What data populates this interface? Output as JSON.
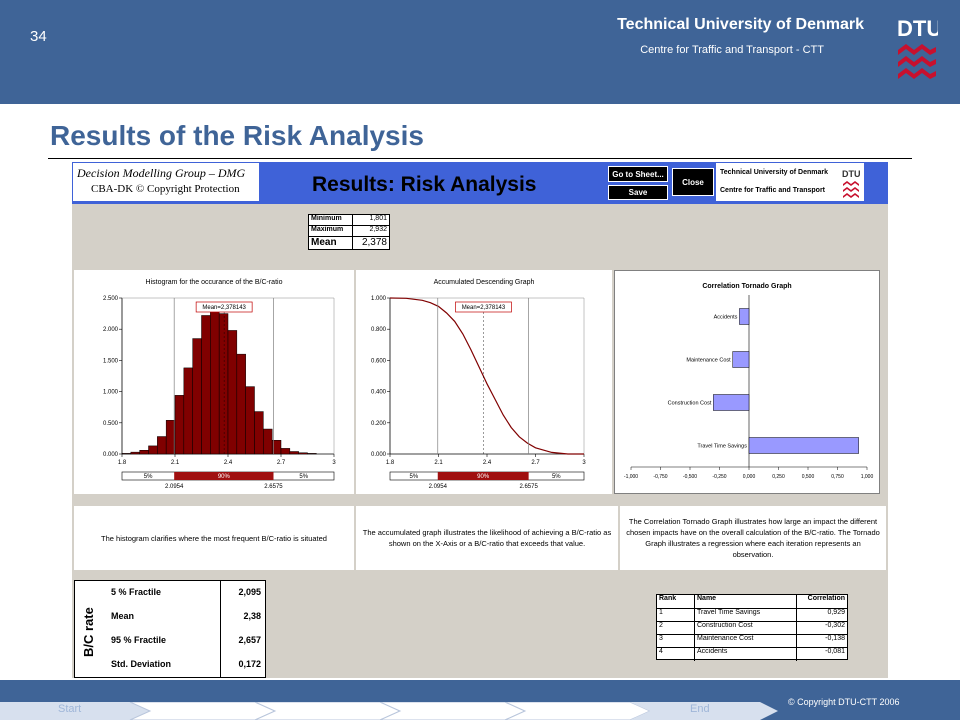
{
  "header": {
    "slide_number": "34",
    "university": "Technical University of Denmark",
    "centre": "Centre for Traffic and Transport - CTT",
    "logo_text": "DTU"
  },
  "slide_title": "Results of the Risk Analysis",
  "app": {
    "dmg_title": "Decision Modelling Group – DMG",
    "dmg_copyright": "CBA-DK © Copyright Protection",
    "title": "Results: Risk Analysis",
    "buttons": {
      "goto": "Go to Sheet...",
      "save": "Save",
      "close": "Close"
    },
    "dtu_line1": "Technical University of Denmark",
    "dtu_line2": "Centre for Traffic and Transport",
    "stats": {
      "min_label": "Minimum",
      "min_value": "1,801",
      "max_label": "Maximum",
      "max_value": "2,932",
      "mean_label": "Mean",
      "mean_value": "2,378"
    },
    "descriptions": {
      "histogram": "The histogram clarifies where the most frequent B/C-ratio is situated",
      "accumulated": "The accumulated graph illustrates the likelihood of achieving a B/C-ratio as shown on the X-Axis or a B/C-ratio that exceeds that value.",
      "tornado": "The Correlation Tornado Graph illustrates how large an impact the different chosen impacts have on the overall calculation of the B/C-ratio. The Tornado Graph illustrates a regression where each iteration represents an observation."
    },
    "fractile_table": {
      "side_label": "B/C rate",
      "rows": [
        {
          "label": "5 % Fractile",
          "value": "2,095"
        },
        {
          "label": "Mean",
          "value": "2,38"
        },
        {
          "label": "95 % Fractile",
          "value": "2,657"
        },
        {
          "label": "Std. Deviation",
          "value": "0,172"
        }
      ]
    },
    "rank_table": {
      "headers": [
        "Rank",
        "Name",
        "Correlation"
      ],
      "rows": [
        [
          "1",
          "Travel Time Savings",
          "0,929"
        ],
        [
          "2",
          "Construction Cost",
          "-0,302"
        ],
        [
          "3",
          "Maintenance Cost",
          "-0,138"
        ],
        [
          "4",
          "Accidents",
          "-0,081"
        ]
      ]
    }
  },
  "chart_data": [
    {
      "type": "bar",
      "title": "Histogram for the occurance of the B/C-ratio",
      "x_ticks": [
        "1.8",
        "2.1",
        "2.4",
        "2.7",
        "3"
      ],
      "y_ticks": [
        "0.000",
        "0.500",
        "1.000",
        "1.500",
        "2.000",
        "2.500"
      ],
      "xlim": [
        1.8,
        3.0
      ],
      "ylim": [
        0,
        2.5
      ],
      "bin_edges": [
        1.8,
        1.85,
        1.9,
        1.95,
        2.0,
        2.05,
        2.1,
        2.15,
        2.2,
        2.25,
        2.3,
        2.35,
        2.4,
        2.45,
        2.5,
        2.55,
        2.6,
        2.65,
        2.7,
        2.75,
        2.8,
        2.85,
        2.9
      ],
      "values": [
        0.01,
        0.03,
        0.06,
        0.13,
        0.28,
        0.54,
        0.94,
        1.38,
        1.85,
        2.22,
        2.37,
        2.25,
        1.98,
        1.6,
        1.08,
        0.68,
        0.4,
        0.22,
        0.09,
        0.04,
        0.02,
        0.01
      ],
      "mean_label": "Mean=2,378143",
      "markers": {
        "left": "2.0954",
        "right": "2.6575"
      },
      "percent_bar": [
        "5%",
        "90%",
        "5%"
      ]
    },
    {
      "type": "line",
      "title": "Accumulated Descending Graph",
      "x_ticks": [
        "1.8",
        "2.1",
        "2.4",
        "2.7",
        "3"
      ],
      "y_ticks": [
        "0.000",
        "0.200",
        "0.400",
        "0.600",
        "0.800",
        "1.000"
      ],
      "xlim": [
        1.8,
        3.0
      ],
      "ylim": [
        0,
        1.0
      ],
      "x": [
        1.8,
        1.9,
        2.0,
        2.05,
        2.1,
        2.15,
        2.2,
        2.25,
        2.3,
        2.35,
        2.4,
        2.45,
        2.5,
        2.55,
        2.6,
        2.65,
        2.7,
        2.8,
        2.9,
        3.0
      ],
      "y": [
        1.0,
        0.998,
        0.985,
        0.97,
        0.946,
        0.904,
        0.85,
        0.77,
        0.67,
        0.56,
        0.45,
        0.35,
        0.25,
        0.17,
        0.11,
        0.07,
        0.04,
        0.01,
        0.0,
        0.0
      ],
      "mean_label": "Mean=2,378143",
      "markers": {
        "left": "2.0954",
        "right": "2.6575"
      },
      "percent_bar": [
        "5%",
        "90%",
        "5%"
      ]
    },
    {
      "type": "bar",
      "orientation": "horizontal",
      "title": "Correlation Tornado Graph",
      "categories": [
        "Accidents",
        "Maintenance Cost",
        "Construction Cost",
        "Travel Time Savings"
      ],
      "values": [
        -0.081,
        -0.138,
        -0.302,
        0.929
      ],
      "x_ticks": [
        "-1,000",
        "-0,750",
        "-0,500",
        "-0,250",
        "0,000",
        "0,250",
        "0,500",
        "0,750",
        "1,000"
      ],
      "xlim": [
        -1.0,
        1.0
      ],
      "bar_color": "#9999ff"
    }
  ],
  "footer": {
    "start": "Start",
    "end": "End",
    "copyright": "© Copyright DTU-CTT 2006"
  },
  "colors": {
    "header_bg": "#3f6497",
    "app_bar": "#3f62d8",
    "hist_bar": "#800000",
    "tornado_bar": "#9999ff"
  }
}
